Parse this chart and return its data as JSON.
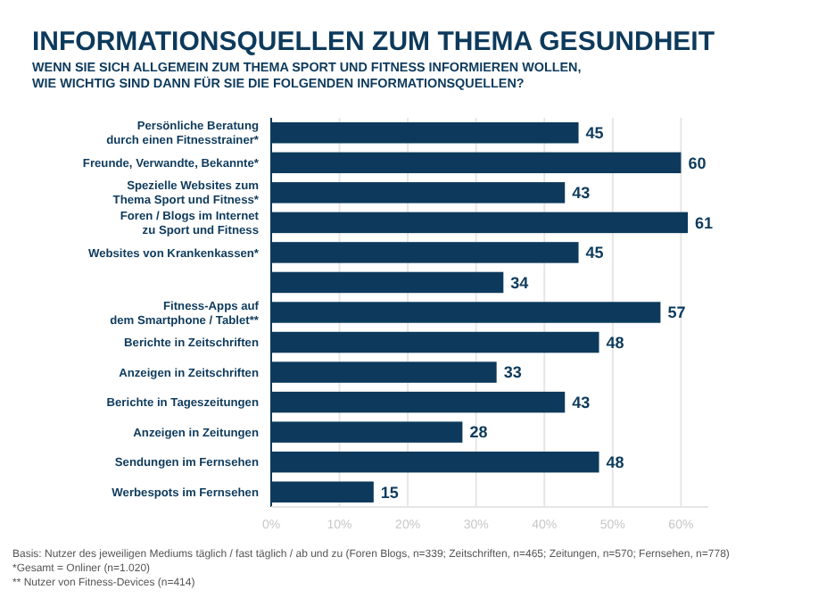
{
  "chart_data": {
    "type": "bar",
    "orientation": "horizontal",
    "title": "INFORMATIONSQUELLEN ZUM THEMA GESUNDHEIT",
    "subtitle": "WENN SIE SICH ALLGEMEIN ZUM THEMA SPORT UND FITNESS INFORMIEREN WOLLEN,\nWIE WICHTIG SIND DANN FÜR SIE DIE FOLGENDEN INFORMATIONSQUELLEN?",
    "categories": [
      "Persönliche Beratung\ndurch einen Fitnesstrainer*",
      "Freunde, Verwandte, Bekannte*",
      "Spezielle Websites zum\nThema Sport und Fitness*",
      "Foren / Blogs im Internet\nzu Sport und Fitness",
      "Websites von Krankenkassen*",
      null,
      "Fitness-Apps auf\ndem Smartphone / Tablet**",
      "Berichte in Zeitschriften",
      "Anzeigen in Zeitschriften",
      "Berichte in Tageszeitungen",
      "Anzeigen in Zeitungen",
      "Sendungen im Fernsehen",
      "Werbespots im Fernsehen"
    ],
    "values": [
      45,
      60,
      43,
      61,
      45,
      34,
      57,
      48,
      33,
      43,
      28,
      48,
      15
    ],
    "color": "#0d3a5c",
    "data_labels": true,
    "grid": "x",
    "xlim": [
      0,
      64
    ],
    "xticks": [
      {
        "value": 0,
        "label": "0%"
      },
      {
        "value": 10,
        "label": "10%"
      },
      {
        "value": 20,
        "label": "20%"
      },
      {
        "value": 30,
        "label": "30%"
      },
      {
        "value": 40,
        "label": "40%"
      },
      {
        "value": 50,
        "label": "50%"
      },
      {
        "value": 60,
        "label": "60%"
      }
    ],
    "annotations": [
      "Basis: Nutzer des jeweiligen Mediums täglich / fast täglich / ab und zu (Foren Blogs, n=339; Zeitschriften, n=465; Zeitungen, n=570; Fernsehen, n=778)",
      "*Gesamt = Onliner (n=1.020)",
      "** Nutzer von Fitness-Devices (n=414)"
    ]
  }
}
